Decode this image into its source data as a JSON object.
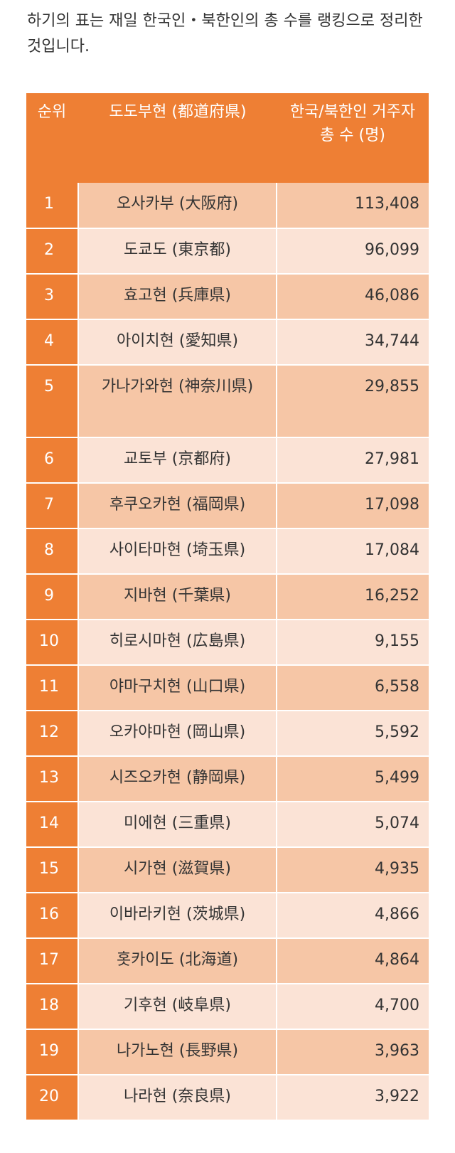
{
  "intro_text": "하기의 표는 재일 한국인・북한인의 총 수를 랭킹으로 정리한 것입니다.",
  "table": {
    "headers": {
      "rank": "순위",
      "prefecture": "도도부현 (都道府県)",
      "count": "한국/북한인 거주자 총 수 (명)"
    },
    "rows": [
      {
        "rank": "1",
        "prefecture": "오사카부 (大阪府)",
        "count": "113,408"
      },
      {
        "rank": "2",
        "prefecture": "도쿄도 (東京都)",
        "count": "96,099"
      },
      {
        "rank": "3",
        "prefecture": "효고현 (兵庫県)",
        "count": "46,086"
      },
      {
        "rank": "4",
        "prefecture": "아이치현 (愛知県)",
        "count": "34,744"
      },
      {
        "rank": "5",
        "prefecture": "가나가와현 (神奈川県)",
        "count": "29,855"
      },
      {
        "rank": "6",
        "prefecture": "교토부 (京都府)",
        "count": "27,981"
      },
      {
        "rank": "7",
        "prefecture": "후쿠오카현 (福岡県)",
        "count": "17,098"
      },
      {
        "rank": "8",
        "prefecture": "사이타마현 (埼玉県)",
        "count": "17,084"
      },
      {
        "rank": "9",
        "prefecture": "지바현 (千葉県)",
        "count": "16,252"
      },
      {
        "rank": "10",
        "prefecture": "히로시마현 (広島県)",
        "count": "9,155"
      },
      {
        "rank": "11",
        "prefecture": "야마구치현 (山口県)",
        "count": "6,558"
      },
      {
        "rank": "12",
        "prefecture": "오카야마현 (岡山県)",
        "count": "5,592"
      },
      {
        "rank": "13",
        "prefecture": "시즈오카현 (静岡県)",
        "count": "5,499"
      },
      {
        "rank": "14",
        "prefecture": "미에현 (三重県)",
        "count": "5,074"
      },
      {
        "rank": "15",
        "prefecture": "시가현 (滋賀県)",
        "count": "4,935"
      },
      {
        "rank": "16",
        "prefecture": "이바라키현 (茨城県)",
        "count": "4,866"
      },
      {
        "rank": "17",
        "prefecture": "홋카이도 (北海道)",
        "count": "4,864"
      },
      {
        "rank": "18",
        "prefecture": "기후현 (岐阜県)",
        "count": "4,700"
      },
      {
        "rank": "19",
        "prefecture": "나가노현 (長野県)",
        "count": "3,963"
      },
      {
        "rank": "20",
        "prefecture": "나라현 (奈良県)",
        "count": "3,922"
      }
    ]
  },
  "colors": {
    "header_bg": "#ee7f34",
    "rank_bg": "#ee7f34",
    "row_dark": "#f6c6a6",
    "row_light": "#fbe3d6"
  }
}
